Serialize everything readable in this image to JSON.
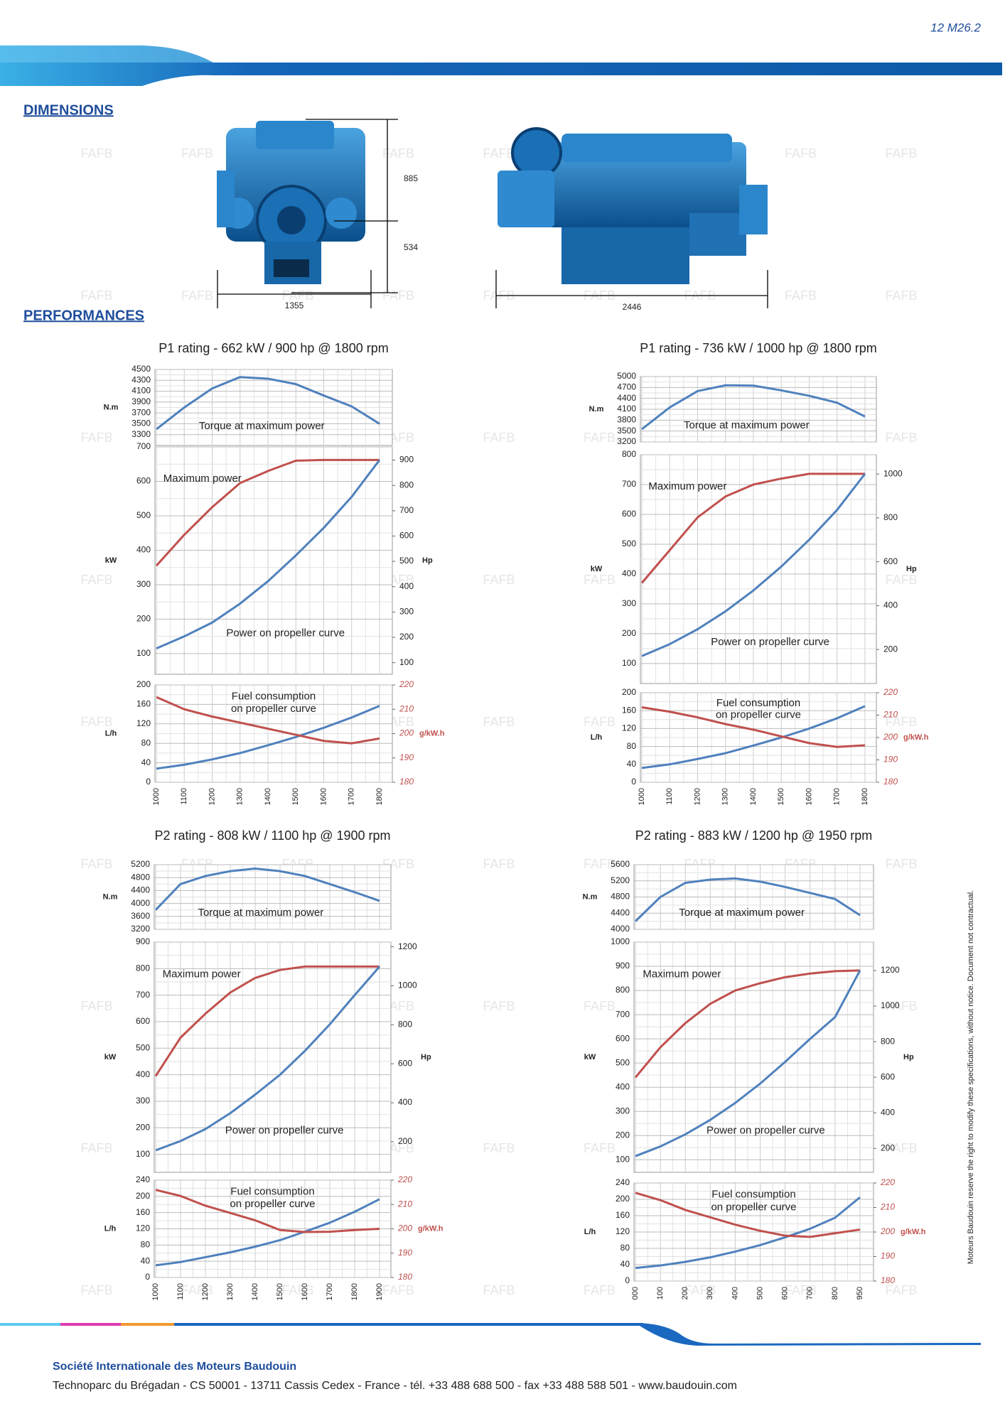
{
  "header": {
    "code": "12 M26.2"
  },
  "sections": {
    "dimensions": "DIMENSIONS",
    "performances": "PERFORMANCES"
  },
  "dimensions": {
    "height_upper": "885",
    "height_lower": "534",
    "width": "1355",
    "length": "2446"
  },
  "watermark": "FAFB",
  "chart_data": [
    {
      "type": "engine-performance",
      "title": "P1 rating - 662 kW / 900 hp @ 1800 rpm",
      "categories": [
        "1000",
        "1100",
        "1200",
        "1300",
        "1400",
        "1500",
        "1600",
        "1700",
        "1800"
      ],
      "torque": {
        "ylabel": "N.m",
        "ylim": [
          3100,
          4500
        ],
        "yticks": [
          3300,
          3500,
          3700,
          3900,
          4100,
          4300,
          4500
        ],
        "series": [
          {
            "name": "Torque at maximum power",
            "color": "#4f81bd",
            "values": [
              3400,
              3800,
              4150,
              4360,
              4330,
              4230,
              4020,
              3820,
              3500
            ]
          }
        ]
      },
      "power": {
        "ylabel": "kW",
        "ylim": [
          40,
          700
        ],
        "yticks": [
          100,
          200,
          300,
          400,
          500,
          600,
          700
        ],
        "y2label": "Hp",
        "y2lim": [
          54,
          952
        ],
        "y2ticks": [
          100,
          200,
          300,
          400,
          500,
          600,
          700,
          800,
          900
        ],
        "series": [
          {
            "name": "Maximum power",
            "color": "#c0504d",
            "values": [
              355,
              445,
              525,
              595,
              630,
              660,
              662,
              662,
              662
            ]
          },
          {
            "name": "Power on propeller curve",
            "color": "#4f81bd",
            "values": [
              115,
              150,
              190,
              245,
              310,
              385,
              465,
              555,
              662
            ]
          }
        ]
      },
      "fuel": {
        "annotation": [
          "Fuel consumption",
          "on propeller curve"
        ],
        "ylabel": "L/h",
        "ylim": [
          0,
          200
        ],
        "yticks": [
          0,
          40,
          80,
          120,
          160,
          200
        ],
        "y2label": "g/kW.h",
        "y2color": "#c0504d",
        "y2lim": [
          180,
          220
        ],
        "y2ticks": [
          180,
          190,
          200,
          210,
          220
        ],
        "series": [
          {
            "color": "#4f81bd",
            "values": [
              28,
              36,
              47,
              60,
              76,
              93,
              112,
              133,
              157
            ]
          },
          {
            "color": "#c0504d",
            "axis": "y2",
            "values": [
              215,
              210,
              207,
              204.5,
              202,
              199.5,
              197,
              196,
              198
            ]
          }
        ]
      }
    },
    {
      "type": "engine-performance",
      "title": "P1 rating - 736 kW / 1000 hp @ 1800 rpm",
      "categories": [
        "1000",
        "1100",
        "1200",
        "1300",
        "1400",
        "1500",
        "1600",
        "1700",
        "1800"
      ],
      "torque": {
        "ylabel": "N.m",
        "ylim": [
          3200,
          5000
        ],
        "yticks": [
          3200,
          3500,
          3800,
          4100,
          4400,
          4700,
          5000
        ],
        "series": [
          {
            "name": "Torque at maximum power",
            "color": "#4f81bd",
            "values": [
              3550,
              4150,
              4600,
              4760,
              4750,
              4620,
              4470,
              4280,
              3900
            ]
          }
        ]
      },
      "power": {
        "ylabel": "kW",
        "ylim": [
          33,
          800
        ],
        "yticks": [
          100,
          200,
          300,
          400,
          500,
          600,
          700,
          800
        ],
        "y2label": "Hp",
        "y2lim": [
          45,
          1088
        ],
        "y2ticks": [
          200,
          400,
          600,
          800,
          1000
        ],
        "series": [
          {
            "name": "Maximum power",
            "color": "#c0504d",
            "values": [
              370,
              480,
              590,
              660,
              700,
              720,
              736,
              736,
              736
            ]
          },
          {
            "name": "Power on propeller curve",
            "color": "#4f81bd",
            "values": [
              125,
              165,
              215,
              275,
              345,
              425,
              515,
              615,
              736
            ]
          }
        ]
      },
      "fuel": {
        "annotation": [
          "Fuel consumption",
          "on propeller curve"
        ],
        "ylabel": "L/h",
        "ylim": [
          0,
          200
        ],
        "yticks": [
          0,
          40,
          80,
          120,
          160,
          200
        ],
        "y2label": "g/kW.h",
        "y2color": "#c0504d",
        "y2lim": [
          180,
          220
        ],
        "y2ticks": [
          180,
          190,
          200,
          210,
          220
        ],
        "series": [
          {
            "color": "#4f81bd",
            "values": [
              32,
              40,
              52,
              65,
              82,
              100,
              120,
              143,
              170
            ]
          },
          {
            "color": "#c0504d",
            "axis": "y2",
            "values": [
              213.5,
              211.5,
              209,
              206,
              203.5,
              200.5,
              197.5,
              195.8,
              196.5
            ]
          }
        ]
      }
    },
    {
      "type": "engine-performance",
      "title": "P2 rating - 808 kW / 1100 hp @ 1900 rpm",
      "categories": [
        "1000",
        "1100",
        "1200",
        "1300",
        "1400",
        "1500",
        "1600",
        "1700",
        "1800",
        "1900"
      ],
      "torque": {
        "ylabel": "N.m",
        "ylim": [
          3200,
          5200
        ],
        "yticks": [
          3200,
          3600,
          4000,
          4400,
          4800,
          5200
        ],
        "series": [
          {
            "name": "Torque at maximum power",
            "color": "#4f81bd",
            "values": [
              3800,
              4600,
              4850,
              5000,
              5080,
              5000,
              4850,
              4600,
              4350,
              4080
            ]
          }
        ]
      },
      "power": {
        "ylabel": "kW",
        "ylim": [
          32,
          900
        ],
        "yticks": [
          100,
          200,
          300,
          400,
          500,
          600,
          700,
          800,
          900
        ],
        "y2label": "Hp",
        "y2lim": [
          43,
          1224
        ],
        "y2ticks": [
          200,
          400,
          600,
          800,
          1000,
          1200
        ],
        "series": [
          {
            "name": "Maximum power",
            "color": "#c0504d",
            "values": [
              395,
              540,
              630,
              710,
              765,
              795,
              808,
              808,
              808,
              808
            ]
          },
          {
            "name": "Power on propeller curve",
            "color": "#4f81bd",
            "values": [
              115,
              150,
              195,
              255,
              325,
              400,
              490,
              590,
              700,
              808
            ]
          }
        ]
      },
      "fuel": {
        "annotation": [
          "Fuel consumption",
          "on propeller curve"
        ],
        "ylabel": "L/h",
        "ylim": [
          0,
          240
        ],
        "yticks": [
          0,
          40,
          80,
          120,
          160,
          200,
          240
        ],
        "y2label": "g/kW.h",
        "y2color": "#c0504d",
        "y2lim": [
          180,
          220
        ],
        "y2ticks": [
          180,
          190,
          200,
          210,
          220
        ],
        "series": [
          {
            "color": "#4f81bd",
            "values": [
              30,
              38,
              50,
              62,
              76,
              92,
              113,
              135,
              162,
              193
            ]
          },
          {
            "color": "#c0504d",
            "axis": "y2",
            "values": [
              216,
              213.5,
              209.5,
              206.5,
              203.5,
              199.5,
              198.7,
              198.8,
              199.5,
              200
            ]
          }
        ]
      }
    },
    {
      "type": "engine-performance",
      "title": "P2 rating - 883 kW / 1200 hp @ 1950 rpm",
      "categories": [
        "000",
        "100",
        "200",
        "300",
        "400",
        "500",
        "600",
        "700",
        "800",
        "950"
      ],
      "torque": {
        "ylabel": "N.m",
        "ylim": [
          4000,
          5600
        ],
        "yticks": [
          4000,
          4400,
          4800,
          5200,
          5600
        ],
        "series": [
          {
            "name": "Torque at maximum power",
            "color": "#4f81bd",
            "values": [
              4200,
              4800,
              5150,
              5230,
              5260,
              5180,
              5050,
              4900,
              4750,
              4350
            ]
          }
        ]
      },
      "power": {
        "ylabel": "kW",
        "ylim": [
          48,
          1000
        ],
        "yticks": [
          100,
          200,
          300,
          400,
          500,
          600,
          700,
          800,
          900,
          1000
        ],
        "y2label": "Hp",
        "y2lim": [
          65,
          1360
        ],
        "y2ticks": [
          200,
          400,
          600,
          800,
          1000,
          1200
        ],
        "series": [
          {
            "name": "Maximum power",
            "color": "#c0504d",
            "values": [
              440,
              565,
              665,
              745,
              800,
              830,
              855,
              870,
              880,
              883
            ]
          },
          {
            "name": "Power on propeller curve",
            "color": "#4f81bd",
            "values": [
              115,
              155,
              205,
              265,
              335,
              415,
              505,
              600,
              690,
              883
            ]
          }
        ]
      },
      "fuel": {
        "annotation": [
          "Fuel consumption",
          "on propeller curve"
        ],
        "ylabel": "L/h",
        "ylim": [
          0,
          240
        ],
        "yticks": [
          0,
          40,
          80,
          120,
          160,
          200,
          240
        ],
        "y2label": "g/kW.h",
        "y2color": "#c0504d",
        "y2lim": [
          180,
          220
        ],
        "y2ticks": [
          180,
          190,
          200,
          210,
          220
        ],
        "series": [
          {
            "color": "#4f81bd",
            "values": [
              32,
              38,
              47,
              58,
              72,
              88,
              107,
              128,
              155,
              205
            ]
          },
          {
            "color": "#c0504d",
            "axis": "y2",
            "values": [
              216,
              213,
              209,
              206,
              203,
              200.5,
              198.5,
              198,
              199.5,
              201
            ]
          }
        ]
      }
    }
  ],
  "disclaimer": "Moteurs Baudouin reserve the right to modify these specifications, without notice. Document not contractual.",
  "footer": {
    "company": "Société Internationale des Moteurs Baudouin",
    "address": "Technoparc du Brégadan - CS 50001 - 13711 Cassis Cedex - France - tél. +33 488 688 500 - fax +33 488 588 501 - www.baudouin.com"
  }
}
